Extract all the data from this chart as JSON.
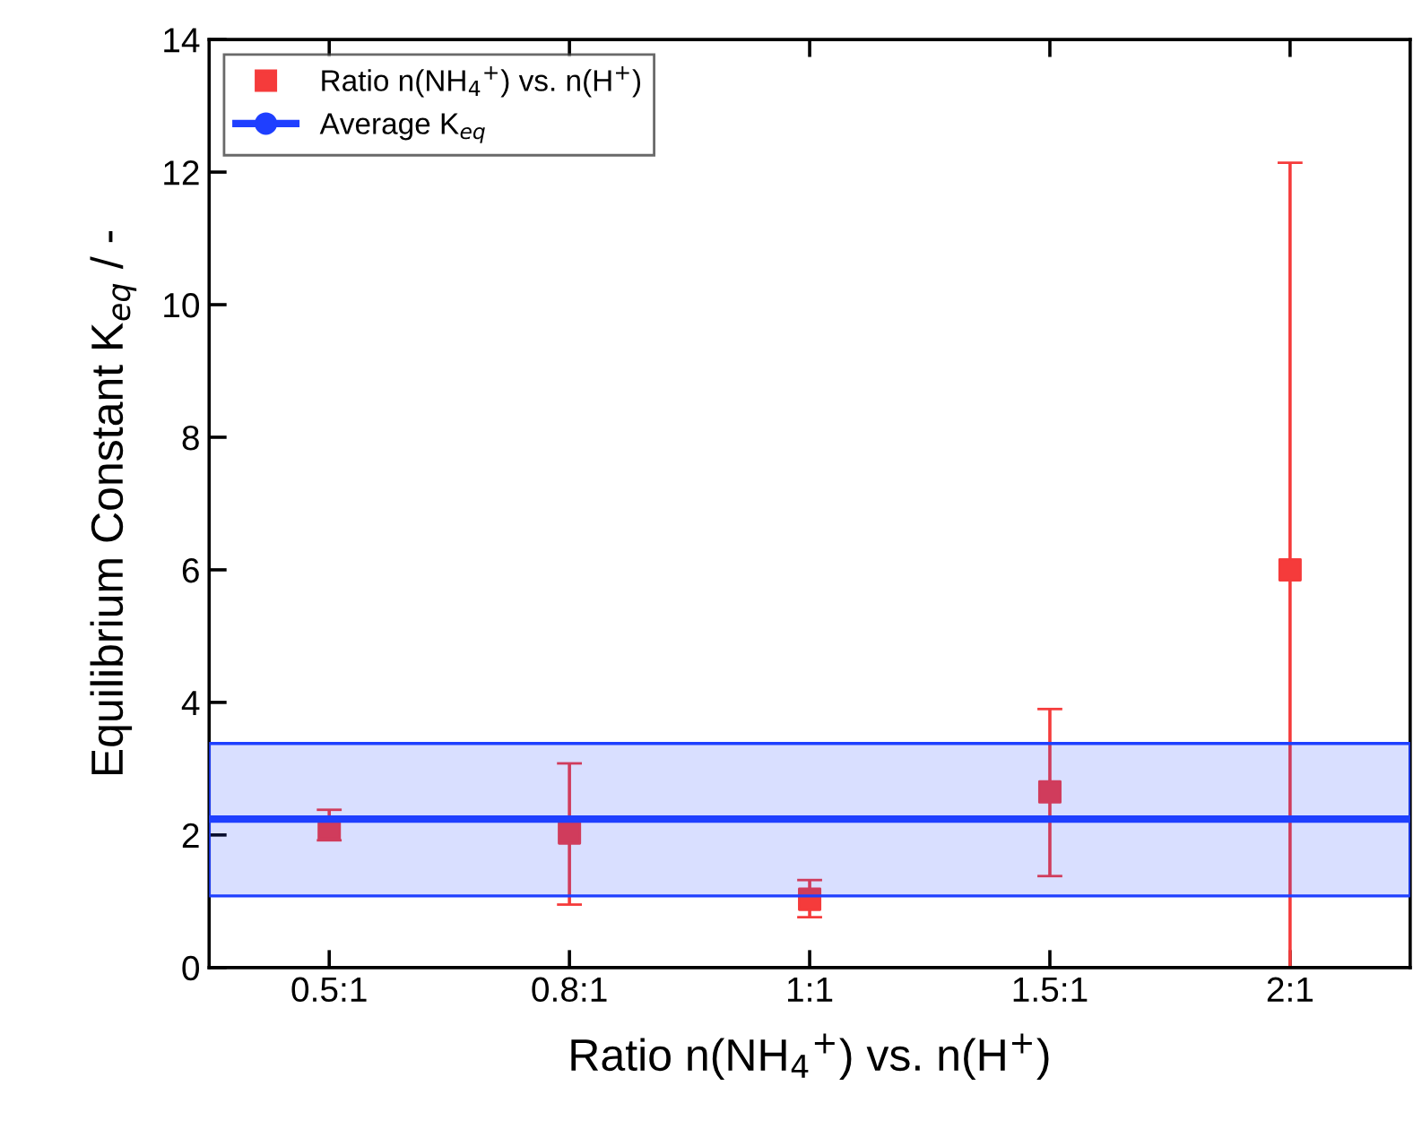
{
  "chart_data": {
    "type": "scatter",
    "xlabel": "Ratio n(NH$_{4}$$^{+}$) vs. n(H$^{+}$)",
    "ylabel": "Equilibrium Constant K$_{eq}$ / -",
    "categories": [
      "0.5:1",
      "0.8:1",
      "1:1",
      "1.5:1",
      "2:1"
    ],
    "series": [
      {
        "name": "Ratio n(NH$_{4}$$^{+}$) vs. n(H$^{+}$)",
        "color": "#f53b3b",
        "values": [
          2.1,
          2.03,
          1.03,
          2.65,
          6.0
        ],
        "errors": [
          [
            1.92,
            2.38
          ],
          [
            0.95,
            3.08
          ],
          [
            0.76,
            1.32
          ],
          [
            1.38,
            3.9
          ],
          [
            0,
            12.14
          ]
        ]
      }
    ],
    "marker": "square",
    "ref_lines": [
      {
        "axis": "y",
        "value": 2.24,
        "label": "Average K$_{eq}$",
        "color": "#1f3fff",
        "line_style": "solid"
      }
    ],
    "bands": [
      {
        "axis": "y",
        "from": 1.08,
        "to": 3.38,
        "color": "#1f3fff"
      }
    ],
    "ylim": [
      0,
      14
    ],
    "yticks": [
      0,
      2,
      4,
      6,
      8,
      10,
      12,
      14
    ],
    "grid": false,
    "legend": "top left"
  }
}
